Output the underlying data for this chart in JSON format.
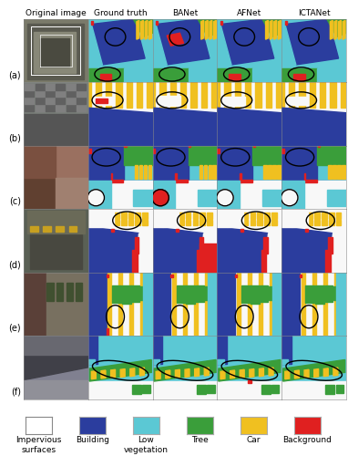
{
  "title_cols": [
    "Original image",
    "Ground truth",
    "BANet",
    "AFNet",
    "ICTANet"
  ],
  "row_labels": [
    "(a)",
    "(b)",
    "(c)",
    "(d)",
    "(e)",
    "(f)"
  ],
  "legend_items": [
    {
      "label": "Impervious\nsurfaces",
      "color": "#ffffff",
      "edgecolor": "#999999"
    },
    {
      "label": "Building",
      "color": "#2b3d9e",
      "edgecolor": "#2b3d9e"
    },
    {
      "label": "Low\nvegetation",
      "color": "#5bc8d4",
      "edgecolor": "#5bc8d4"
    },
    {
      "label": "Tree",
      "color": "#3a9e3a",
      "edgecolor": "#3a9e3a"
    },
    {
      "label": "Car",
      "color": "#f0c020",
      "edgecolor": "#f0c020"
    },
    {
      "label": "Background",
      "color": "#e02020",
      "edgecolor": "#e02020"
    }
  ],
  "background_color": "#ffffff",
  "col_header_fontsize": 6.5,
  "row_label_fontsize": 7.0,
  "legend_fontsize": 6.5
}
